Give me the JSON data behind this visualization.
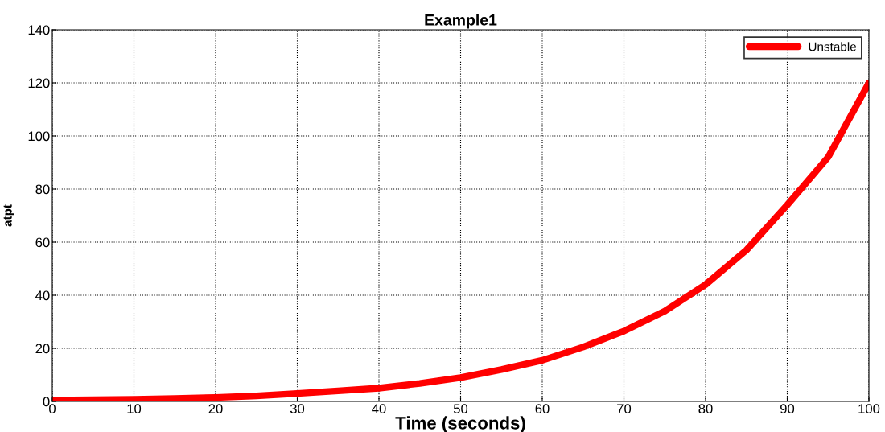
{
  "chart_data": {
    "type": "line",
    "title": "Example1",
    "xlabel": "Time (seconds)",
    "ylabel": "atpt",
    "x": [
      0,
      5,
      10,
      15,
      20,
      25,
      30,
      35,
      40,
      45,
      50,
      55,
      60,
      65,
      70,
      75,
      80,
      85,
      90,
      95,
      100
    ],
    "series": [
      {
        "name": "Unstable",
        "color": "#ff0000",
        "values": [
          0.5,
          0.6,
          0.8,
          1.1,
          1.5,
          2.1,
          3,
          4,
          5,
          6.8,
          9,
          12,
          15.5,
          20.5,
          26.5,
          34,
          44,
          57,
          74,
          92,
          120
        ]
      }
    ],
    "xlim": [
      0,
      100
    ],
    "ylim": [
      0,
      140
    ],
    "xticks": [
      0,
      10,
      20,
      30,
      40,
      50,
      60,
      70,
      80,
      90,
      100
    ],
    "yticks": [
      0,
      20,
      40,
      60,
      80,
      100,
      120,
      140
    ],
    "grid": true,
    "legend": "top right",
    "marker": "none",
    "line_style": "solid"
  }
}
